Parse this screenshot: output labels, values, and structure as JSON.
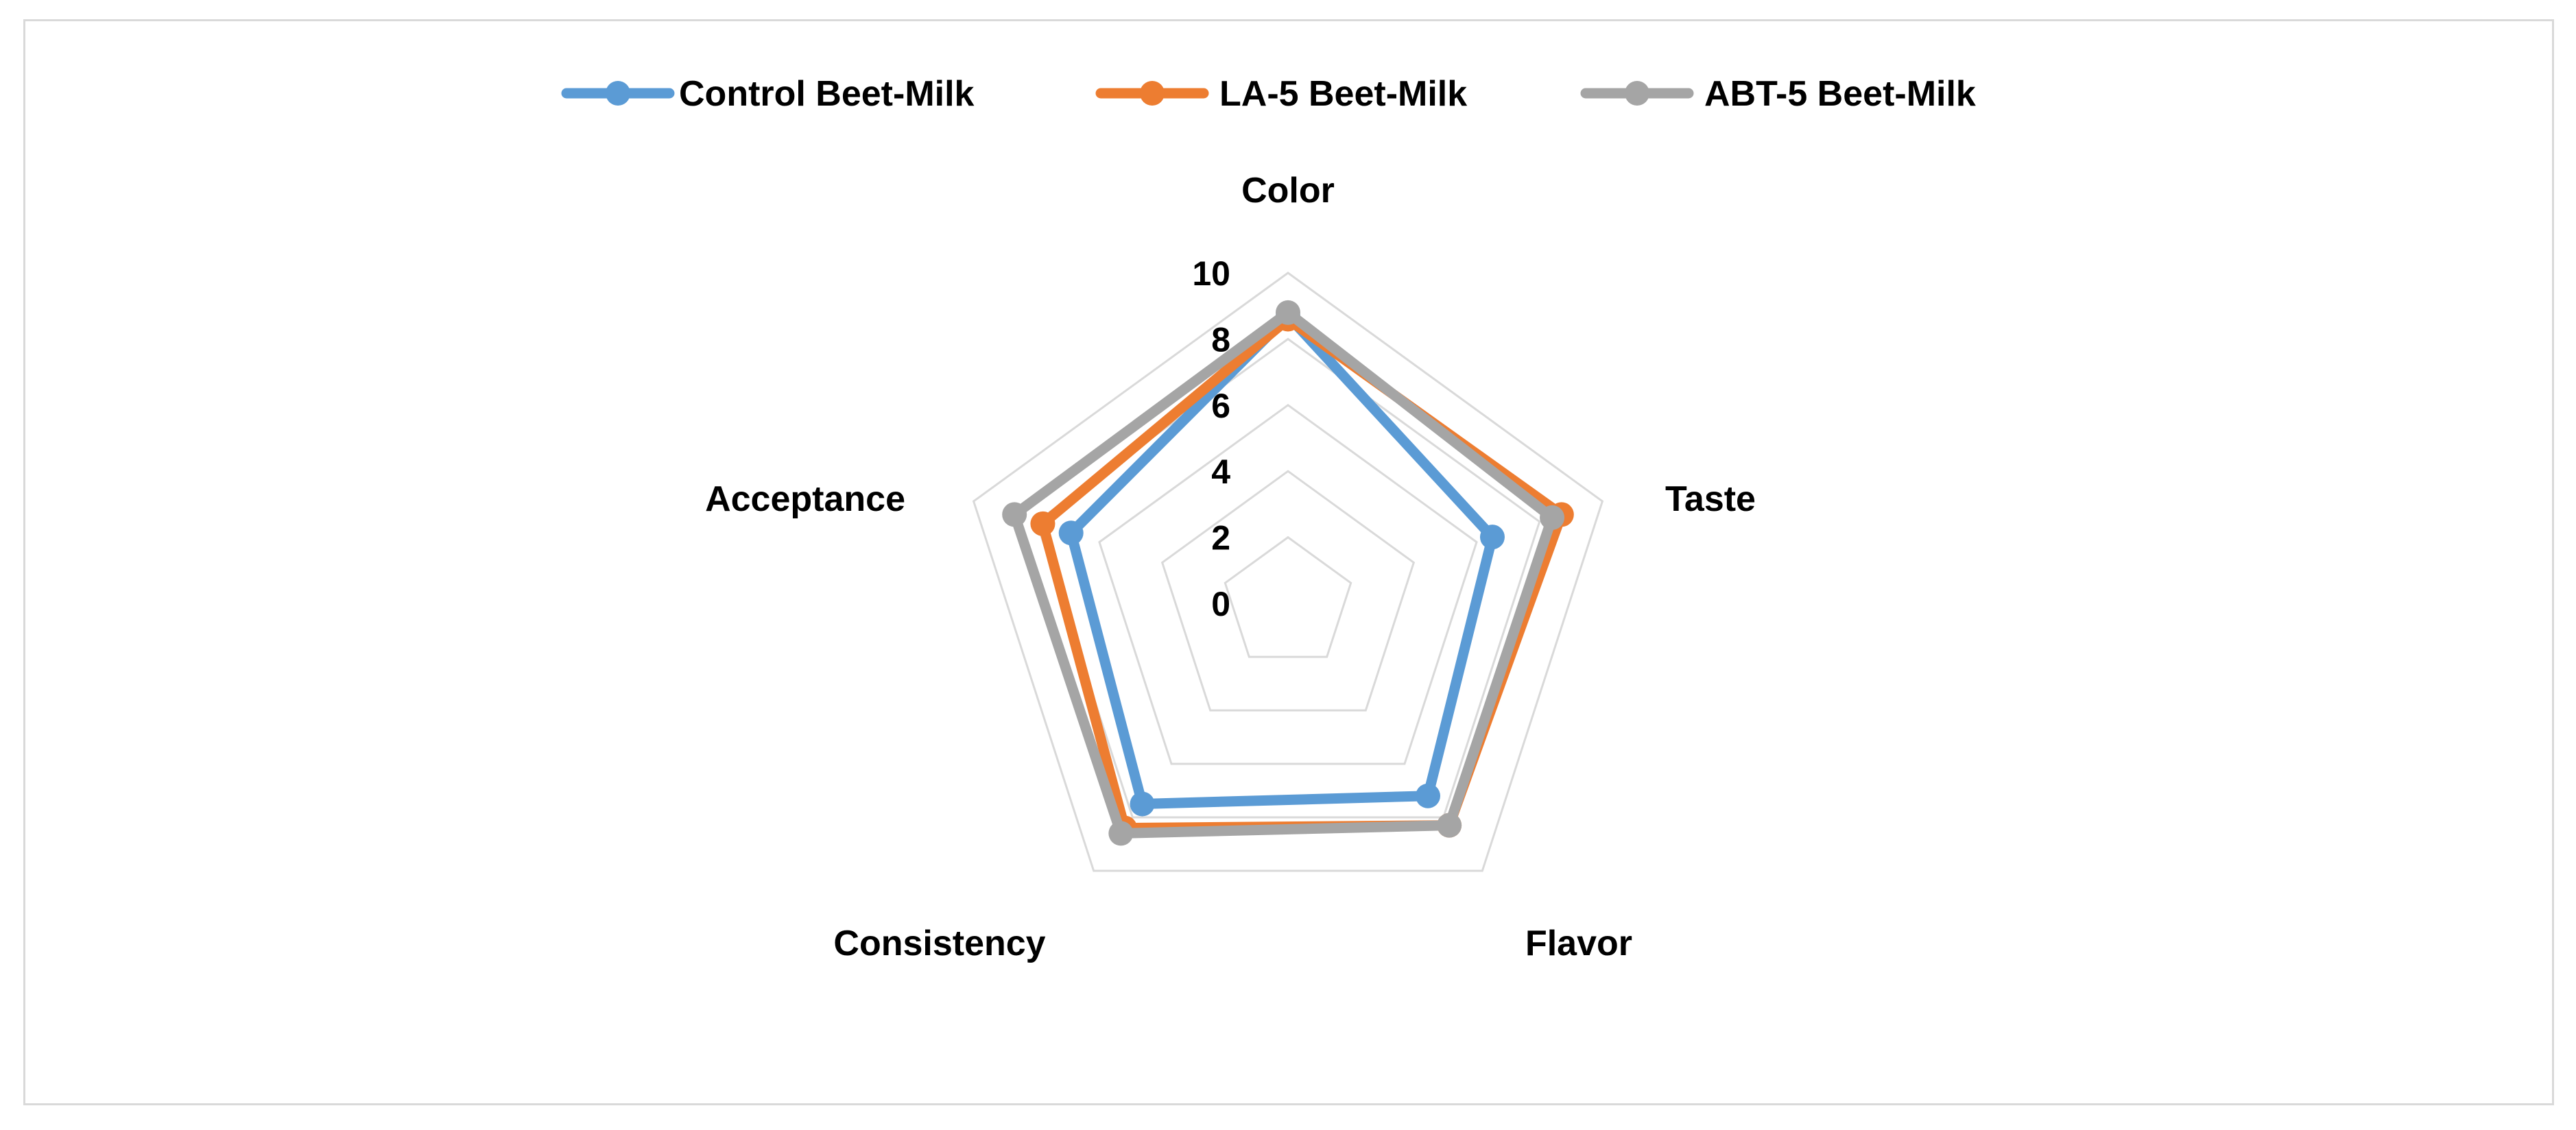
{
  "chart_data": {
    "type": "radar",
    "axes": [
      "Color",
      "Taste",
      "Flavor",
      "Consistency",
      "Acceptance"
    ],
    "rlim": [
      0,
      10
    ],
    "ticks": [
      "0",
      "2",
      "4",
      "6",
      "8",
      "10"
    ],
    "tick_values": [
      0,
      2,
      4,
      6,
      8,
      10
    ],
    "grid": true,
    "legend_position": "top",
    "series": [
      {
        "name": "Control Beet-Milk",
        "color": "#5b9bd5",
        "values": [
          8.7,
          6.5,
          7.2,
          7.5,
          6.9
        ]
      },
      {
        "name": "LA-5 Beet-Milk",
        "color": "#ed7d31",
        "values": [
          8.6,
          8.7,
          8.3,
          8.4,
          7.8
        ]
      },
      {
        "name": "ABT-5 Beet-Milk",
        "color": "#a5a5a5",
        "values": [
          8.8,
          8.4,
          8.3,
          8.6,
          8.7
        ]
      }
    ]
  }
}
